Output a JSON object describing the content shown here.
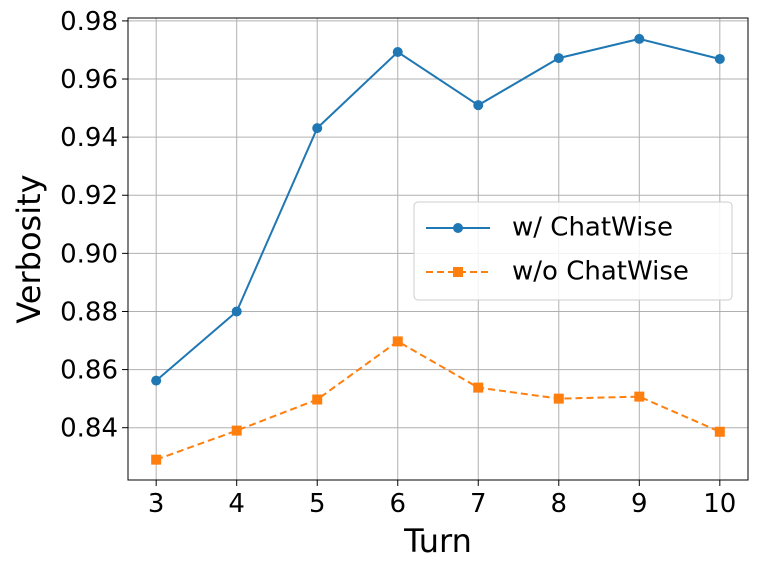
{
  "chart_data": {
    "type": "line",
    "x_label": "Turn",
    "y_label": "Verbosity",
    "x": [
      3,
      4,
      5,
      6,
      7,
      8,
      9,
      10
    ],
    "series": [
      {
        "name": "w/ ChatWise",
        "color": "#1f77b4",
        "marker": "circle",
        "dash": "solid",
        "values": [
          0.8562,
          0.88,
          0.9431,
          0.9693,
          0.951,
          0.9672,
          0.9738,
          0.9669
        ]
      },
      {
        "name": "w/o ChatWise",
        "color": "#ff7f0e",
        "marker": "square",
        "dash": "dashed",
        "values": [
          0.829,
          0.839,
          0.8497,
          0.8697,
          0.8538,
          0.85,
          0.8507,
          0.8386
        ]
      }
    ],
    "xlim": [
      2.65,
      10.35
    ],
    "ylim": [
      0.822,
      0.981
    ],
    "xticks": [
      3,
      4,
      5,
      6,
      7,
      8,
      9,
      10
    ],
    "yticks": [
      0.84,
      0.86,
      0.88,
      {
        "value": 0.9,
        "label": "0.90"
      },
      0.92,
      0.94,
      0.96,
      0.98
    ],
    "grid": true,
    "legend": "center right"
  }
}
